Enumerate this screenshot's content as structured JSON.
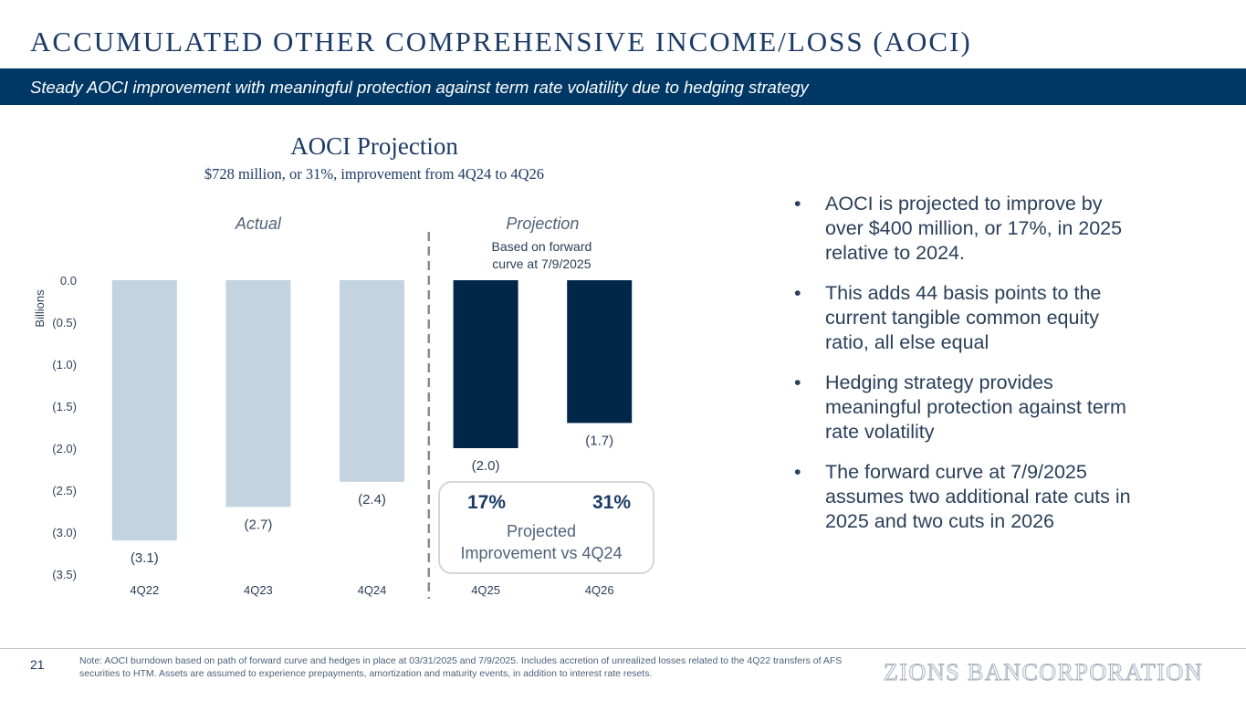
{
  "header": {
    "title": "ACCUMULATED OTHER COMPREHENSIVE INCOME/LOSS (AOCI)",
    "subtitle": "Steady AOCI improvement with meaningful protection against term rate volatility due to hedging strategy"
  },
  "chart_data": {
    "type": "bar",
    "title": "AOCI Projection",
    "subtitle": "$728 million, or 31%, improvement from 4Q24 to 4Q26",
    "ylabel": "Billions",
    "xlabel": "",
    "ylim": [
      -3.5,
      0
    ],
    "yticks": [
      0,
      -0.5,
      -1.0,
      -1.5,
      -2.0,
      -2.5,
      -3.0,
      -3.5
    ],
    "ytick_labels": [
      "0.0",
      "(0.5)",
      "(1.0)",
      "(1.5)",
      "(2.0)",
      "(2.5)",
      "(3.0)",
      "(3.5)"
    ],
    "categories": [
      "4Q22",
      "4Q23",
      "4Q24",
      "4Q25",
      "4Q26"
    ],
    "values": [
      -3.1,
      -2.7,
      -2.4,
      -2.0,
      -1.7
    ],
    "value_labels": [
      "(3.1)",
      "(2.7)",
      "(2.4)",
      "(2.0)",
      "(1.7)"
    ],
    "groups": [
      {
        "name": "Actual",
        "categories": [
          "4Q22",
          "4Q23",
          "4Q24"
        ],
        "color": "#c3d3e0"
      },
      {
        "name": "Projection",
        "categories": [
          "4Q25",
          "4Q26"
        ],
        "color": "#002648",
        "note": "Based on forward curve at 7/9/2025"
      }
    ],
    "callout": {
      "values": [
        "17%",
        "31%"
      ],
      "label_line1": "Projected",
      "label_line2": "Improvement vs 4Q24"
    },
    "grid": false
  },
  "bullets": [
    "AOCI is projected to improve by over $400 million, or 17%, in 2025 relative to 2024.",
    "This adds 44 basis points to the current tangible common equity ratio, all else equal",
    "Hedging strategy provides meaningful protection against term rate volatility",
    "The forward curve at 7/9/2025 assumes two additional rate cuts in 2025 and two cuts in 2026"
  ],
  "bullet_marker": "•",
  "footer": {
    "page_number": "21",
    "note": "Note: AOCI burndown based on path of forward curve and hedges in place at 03/31/2025 and 7/9/2025. Includes accretion of unrealized losses related to the 4Q22 transfers of AFS securities to HTM. Assets are assumed to experience prepayments, amortization and maturity events, in addition to interest rate resets.",
    "logo_text": "ZIONS BANCORPORATION"
  },
  "colors": {
    "navy": "#003865",
    "actual_bar": "#c3d3e0",
    "projection_bar": "#002648"
  }
}
